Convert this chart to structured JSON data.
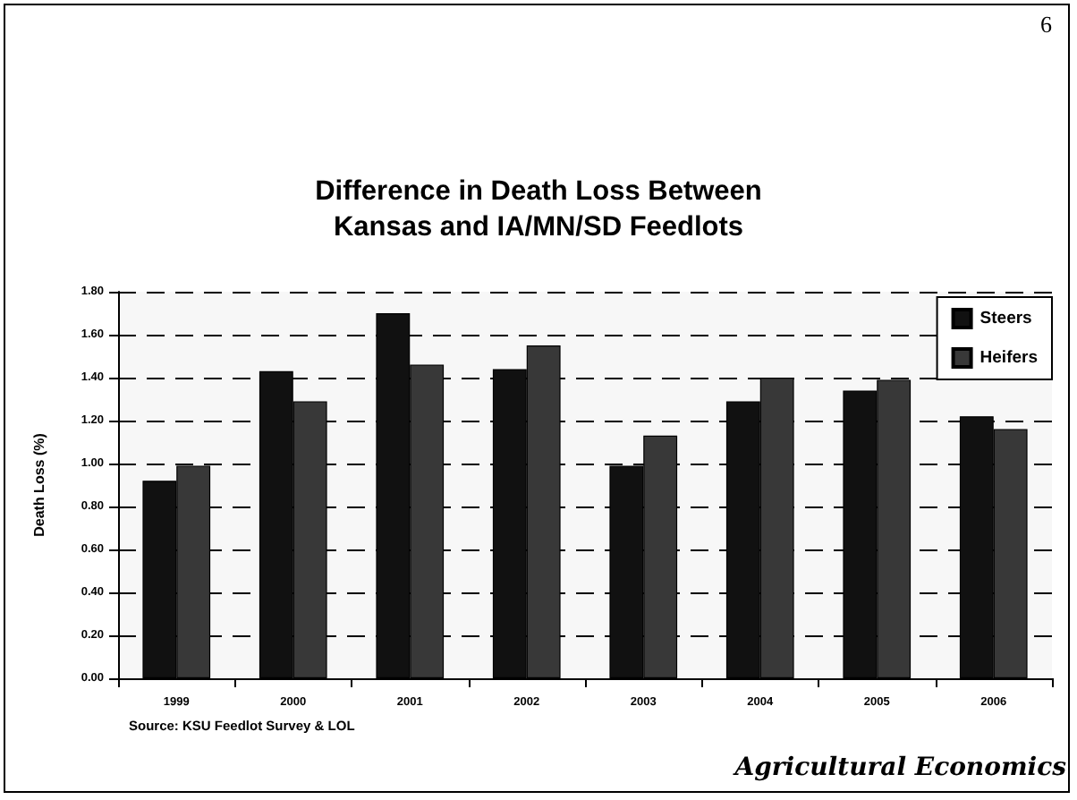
{
  "chart_data": {
    "type": "bar",
    "title": "Difference in Death Loss Between\nKansas and IA/MN/SD Feedlots",
    "ylabel": "Death Loss (%)",
    "categories": [
      "1999",
      "2000",
      "2001",
      "2002",
      "2003",
      "2004",
      "2005",
      "2006"
    ],
    "series": [
      {
        "name": "Steers",
        "color": "#111111",
        "values": [
          0.92,
          1.43,
          1.7,
          1.44,
          0.99,
          1.29,
          1.34,
          1.22
        ]
      },
      {
        "name": "Heifers",
        "color": "#383838",
        "values": [
          0.99,
          1.29,
          1.46,
          1.55,
          1.13,
          1.4,
          1.39,
          1.16
        ]
      }
    ],
    "ylim": [
      0,
      1.8
    ],
    "yticks": [
      {
        "value": 0,
        "label": "0.00"
      },
      {
        "value": 0.2,
        "label": "0.20"
      },
      {
        "value": 0.4,
        "label": "0.40"
      },
      {
        "value": 0.6,
        "label": "0.60"
      },
      {
        "value": 0.8,
        "label": "0.80"
      },
      {
        "value": 1.0,
        "label": "1.00"
      },
      {
        "value": 1.2,
        "label": "1.20"
      },
      {
        "value": 1.4,
        "label": "1.40"
      },
      {
        "value": 1.6,
        "label": "1.60"
      },
      {
        "value": 1.8,
        "label": "1.80"
      }
    ],
    "grid": "y",
    "legend": "top right",
    "annotations": [
      "6",
      "Source: KSU Feedlot Survey & LOL",
      "Agricultural Economics"
    ]
  }
}
